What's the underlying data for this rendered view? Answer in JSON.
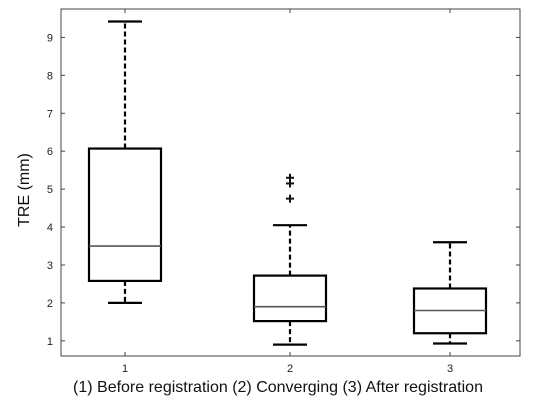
{
  "chart_data": {
    "type": "box",
    "title": "",
    "xlabel": "(1) Before registration (2) Converging (3) After registration",
    "ylabel": "TRE (mm)",
    "ylim": [
      0.6,
      9.75
    ],
    "yticks": [
      1,
      2,
      3,
      4,
      5,
      6,
      7,
      8,
      9
    ],
    "categories": [
      "1",
      "2",
      "3"
    ],
    "grid": false,
    "legend": "none",
    "boxes": [
      {
        "category": "1",
        "whisker_low": 2.0,
        "q1": 2.58,
        "median": 3.5,
        "q3": 6.07,
        "whisker_high": 9.42,
        "outliers": []
      },
      {
        "category": "2",
        "whisker_low": 0.9,
        "q1": 1.52,
        "median": 1.9,
        "q3": 2.72,
        "whisker_high": 4.05,
        "outliers": [
          4.75,
          5.15,
          5.3
        ]
      },
      {
        "category": "3",
        "whisker_low": 0.93,
        "q1": 1.2,
        "median": 1.8,
        "q3": 2.38,
        "whisker_high": 3.6,
        "outliers": []
      }
    ]
  }
}
